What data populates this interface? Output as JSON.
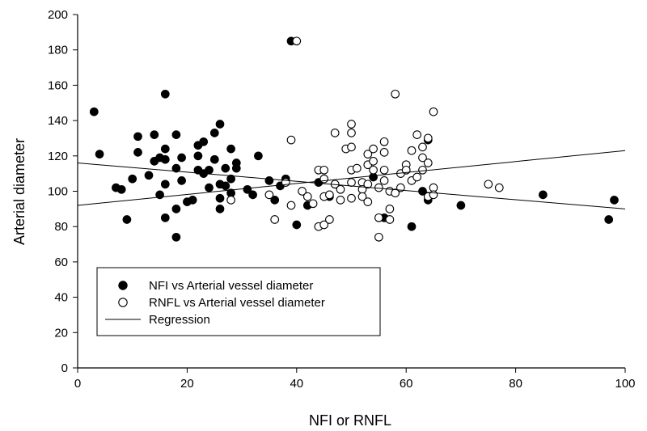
{
  "chart_data": {
    "type": "scatter",
    "xlabel": "NFI or RNFL",
    "ylabel": "Arterial diameter",
    "xlim": [
      0,
      100
    ],
    "ylim": [
      0,
      200
    ],
    "xticks": [
      "0",
      "20",
      "40",
      "60",
      "80",
      "100"
    ],
    "yticks": [
      "0",
      "20",
      "40",
      "60",
      "80",
      "100",
      "120",
      "140",
      "160",
      "180",
      "200"
    ],
    "grid": false,
    "legend_position": "bottom-left",
    "legend": [
      {
        "label": "NFI vs Arterial vessel diameter",
        "marker": "filled-circle"
      },
      {
        "label": "RNFL vs Arterial vessel diameter",
        "marker": "open-circle"
      },
      {
        "label": "Regression",
        "marker": "line"
      }
    ],
    "series": [
      {
        "marker": "filled",
        "color": "#000000",
        "points": [
          [
            3,
            145
          ],
          [
            4,
            121
          ],
          [
            7,
            102
          ],
          [
            8,
            101
          ],
          [
            9,
            84
          ],
          [
            10,
            107
          ],
          [
            11,
            131
          ],
          [
            11,
            122
          ],
          [
            13,
            109
          ],
          [
            14,
            132
          ],
          [
            14,
            117
          ],
          [
            15,
            119
          ],
          [
            15,
            98
          ],
          [
            16,
            155
          ],
          [
            16,
            124
          ],
          [
            16,
            118
          ],
          [
            16,
            104
          ],
          [
            16,
            85
          ],
          [
            18,
            132
          ],
          [
            18,
            113
          ],
          [
            18,
            90
          ],
          [
            18,
            74
          ],
          [
            19,
            106
          ],
          [
            19,
            119
          ],
          [
            20,
            94
          ],
          [
            21,
            95
          ],
          [
            22,
            126
          ],
          [
            22,
            120
          ],
          [
            22,
            112
          ],
          [
            23,
            128
          ],
          [
            23,
            110
          ],
          [
            24,
            112
          ],
          [
            24,
            102
          ],
          [
            25,
            118
          ],
          [
            25,
            133
          ],
          [
            26,
            138
          ],
          [
            26,
            104
          ],
          [
            26,
            96
          ],
          [
            26,
            90
          ],
          [
            27,
            113
          ],
          [
            27,
            103
          ],
          [
            28,
            124
          ],
          [
            28,
            107
          ],
          [
            28,
            99
          ],
          [
            29,
            116
          ],
          [
            29,
            113
          ],
          [
            31,
            101
          ],
          [
            32,
            98
          ],
          [
            33,
            120
          ],
          [
            35,
            106
          ],
          [
            36,
            95
          ],
          [
            37,
            103
          ],
          [
            38,
            107
          ],
          [
            39,
            185
          ],
          [
            40,
            81
          ],
          [
            42,
            92
          ],
          [
            44,
            105
          ],
          [
            46,
            97
          ],
          [
            54,
            108
          ],
          [
            56,
            85
          ],
          [
            60,
            112
          ],
          [
            61,
            80
          ],
          [
            63,
            100
          ],
          [
            64,
            129
          ],
          [
            64,
            95
          ],
          [
            70,
            92
          ],
          [
            85,
            98
          ],
          [
            97,
            84
          ],
          [
            98,
            95
          ]
        ]
      },
      {
        "marker": "open",
        "color": "#000000",
        "points": [
          [
            28,
            95
          ],
          [
            35,
            98
          ],
          [
            36,
            84
          ],
          [
            38,
            105
          ],
          [
            39,
            129
          ],
          [
            39,
            92
          ],
          [
            40,
            185
          ],
          [
            41,
            100
          ],
          [
            42,
            97
          ],
          [
            43,
            93
          ],
          [
            44,
            112
          ],
          [
            44,
            80
          ],
          [
            45,
            112
          ],
          [
            45,
            97
          ],
          [
            45,
            81
          ],
          [
            45,
            107
          ],
          [
            46,
            84
          ],
          [
            46,
            98
          ],
          [
            47,
            133
          ],
          [
            47,
            104
          ],
          [
            48,
            95
          ],
          [
            48,
            101
          ],
          [
            49,
            124
          ],
          [
            50,
            138
          ],
          [
            50,
            133
          ],
          [
            50,
            125
          ],
          [
            50,
            112
          ],
          [
            50,
            105
          ],
          [
            50,
            96
          ],
          [
            51,
            113
          ],
          [
            52,
            105
          ],
          [
            52,
            101
          ],
          [
            52,
            97
          ],
          [
            53,
            121
          ],
          [
            53,
            115
          ],
          [
            53,
            104
          ],
          [
            53,
            94
          ],
          [
            54,
            124
          ],
          [
            54,
            117
          ],
          [
            54,
            112
          ],
          [
            55,
            102
          ],
          [
            55,
            85
          ],
          [
            55,
            74
          ],
          [
            56,
            128
          ],
          [
            56,
            122
          ],
          [
            56,
            112
          ],
          [
            56,
            106
          ],
          [
            57,
            100
          ],
          [
            57,
            90
          ],
          [
            57,
            84
          ],
          [
            58,
            155
          ],
          [
            58,
            99
          ],
          [
            59,
            110
          ],
          [
            59,
            102
          ],
          [
            60,
            115
          ],
          [
            60,
            112
          ],
          [
            61,
            123
          ],
          [
            61,
            106
          ],
          [
            62,
            132
          ],
          [
            62,
            108
          ],
          [
            63,
            125
          ],
          [
            63,
            119
          ],
          [
            63,
            112
          ],
          [
            64,
            130
          ],
          [
            64,
            116
          ],
          [
            64,
            97
          ],
          [
            65,
            145
          ],
          [
            65,
            102
          ],
          [
            65,
            98
          ],
          [
            75,
            104
          ],
          [
            77,
            102
          ]
        ]
      }
    ],
    "regression_lines": [
      {
        "x": [
          0,
          100
        ],
        "y": [
          92,
          123
        ]
      },
      {
        "x": [
          0,
          100
        ],
        "y": [
          116,
          90
        ]
      }
    ]
  }
}
